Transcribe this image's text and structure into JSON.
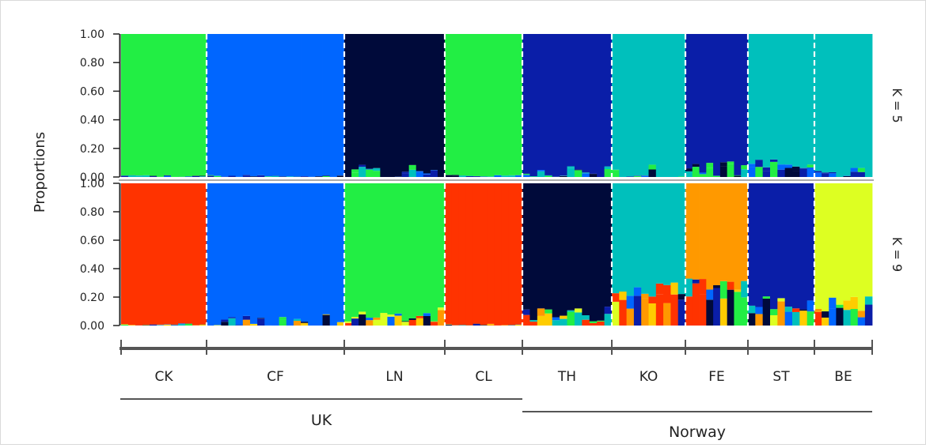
{
  "chart_data": {
    "type": "stacked-bar",
    "ylabel": "Proportions",
    "y_ticks": [
      "1.00",
      "0.80",
      "0.60",
      "0.40",
      "0.20",
      "0.00"
    ],
    "ylim": [
      0,
      1
    ],
    "populations": [
      {
        "code": "CK",
        "n": 12
      },
      {
        "code": "CF",
        "n": 19
      },
      {
        "code": "LN",
        "n": 14
      },
      {
        "code": "CL",
        "n": 11
      },
      {
        "code": "TH",
        "n": 12
      },
      {
        "code": "KO",
        "n": 10
      },
      {
        "code": "FE",
        "n": 9
      },
      {
        "code": "ST",
        "n": 9
      },
      {
        "code": "BE",
        "n": 8
      }
    ],
    "regions": [
      {
        "name": "UK",
        "populations": [
          "CK",
          "CF",
          "LN",
          "CL"
        ]
      },
      {
        "name": "Norway",
        "populations": [
          "TH",
          "KO",
          "FE",
          "ST",
          "BE"
        ]
      }
    ],
    "panels": [
      {
        "label": "K = 5",
        "clusters": [
          {
            "id": "c1",
            "color": "#22ee44"
          },
          {
            "id": "c2",
            "color": "#0066ff"
          },
          {
            "id": "c3",
            "color": "#000a3a"
          },
          {
            "id": "c4",
            "color": "#0a1ea8"
          },
          {
            "id": "c5",
            "color": "#00c0bc"
          }
        ],
        "population_majority": {
          "CK": "c1",
          "CF": "c2",
          "LN": "c3",
          "CL": "c1",
          "TH": "c4",
          "KO": "c5",
          "FE": "c4",
          "ST": "c5",
          "BE": "c5"
        },
        "approx_majority_proportion": {
          "CK": 0.99,
          "CF": 0.99,
          "LN": 0.96,
          "CL": 1.0,
          "TH": 0.98,
          "KO": 0.97,
          "FE": 0.95,
          "ST": 0.93,
          "BE": 0.98
        }
      },
      {
        "label": "K = 9",
        "clusters": [
          {
            "id": "c1",
            "color": "#ff3300"
          },
          {
            "id": "c2",
            "color": "#0066ff"
          },
          {
            "id": "c3",
            "color": "#22ee44"
          },
          {
            "id": "c4",
            "color": "#000a3a"
          },
          {
            "id": "c5",
            "color": "#ffcc00"
          },
          {
            "id": "c6",
            "color": "#00c0bc"
          },
          {
            "id": "c7",
            "color": "#ff9900"
          },
          {
            "id": "c8",
            "color": "#0a1ea8"
          },
          {
            "id": "c9",
            "color": "#ddff22"
          }
        ],
        "population_majority": {
          "CK": "c1",
          "CF": "c2",
          "LN": "c3",
          "CL": "c1",
          "TH": "c4",
          "KO": "c6",
          "FE": "c7",
          "ST": "c8",
          "BE": "c9"
        },
        "approx_majority_proportion": {
          "CK": 0.99,
          "CF": 0.98,
          "LN": 0.92,
          "CL": 1.0,
          "TH": 0.92,
          "KO": 0.75,
          "FE": 0.7,
          "ST": 0.85,
          "BE": 0.85
        }
      }
    ]
  }
}
